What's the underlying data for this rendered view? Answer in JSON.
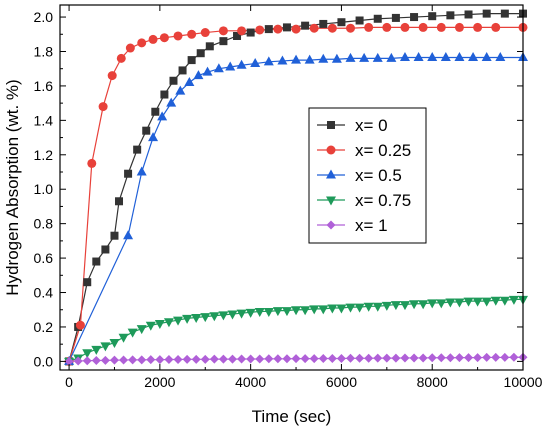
{
  "chart_data": {
    "type": "scatter",
    "xlabel": "Time (sec)",
    "ylabel": "Hydrogen Absorption (wt. %)",
    "xlim": [
      -200,
      10000
    ],
    "ylim": [
      -0.05,
      2.07
    ],
    "x_ticks": [
      0,
      2000,
      4000,
      6000,
      8000,
      10000
    ],
    "y_ticks": [
      0.0,
      0.2,
      0.4,
      0.6,
      0.8,
      1.0,
      1.2,
      1.4,
      1.6,
      1.8,
      2.0
    ],
    "y_tick_labels": [
      "0.0",
      "0.2",
      "0.4",
      "0.6",
      "0.8",
      "1.0",
      "1.2",
      "1.4",
      "1.6",
      "1.8",
      "2.0"
    ],
    "x_tick_labels": [
      "0",
      "2000",
      "4000",
      "6000",
      "8000",
      "10000"
    ],
    "grid": false,
    "legend_position": "center-right",
    "series": [
      {
        "name": "x= 0",
        "color": "#333333",
        "marker": "square",
        "points": [
          [
            0,
            0.0
          ],
          [
            200,
            0.2
          ],
          [
            400,
            0.46
          ],
          [
            600,
            0.58
          ],
          [
            800,
            0.65
          ],
          [
            1000,
            0.73
          ],
          [
            1100,
            0.93
          ],
          [
            1300,
            1.09
          ],
          [
            1500,
            1.23
          ],
          [
            1700,
            1.34
          ],
          [
            1900,
            1.45
          ],
          [
            2100,
            1.55
          ],
          [
            2300,
            1.63
          ],
          [
            2500,
            1.69
          ],
          [
            2700,
            1.75
          ],
          [
            2900,
            1.79
          ],
          [
            3100,
            1.83
          ],
          [
            3400,
            1.86
          ],
          [
            3700,
            1.89
          ],
          [
            4000,
            1.91
          ],
          [
            4400,
            1.93
          ],
          [
            4800,
            1.94
          ],
          [
            5200,
            1.95
          ],
          [
            5600,
            1.96
          ],
          [
            6000,
            1.97
          ],
          [
            6400,
            1.98
          ],
          [
            6800,
            1.99
          ],
          [
            7200,
            1.995
          ],
          [
            7600,
            2.0
          ],
          [
            8000,
            2.005
          ],
          [
            8400,
            2.01
          ],
          [
            8800,
            2.015
          ],
          [
            9200,
            2.02
          ],
          [
            9600,
            2.02
          ],
          [
            10000,
            2.02
          ]
        ]
      },
      {
        "name": "x= 0.25",
        "color": "#e8413a",
        "marker": "circle",
        "points": [
          [
            0,
            0.0
          ],
          [
            250,
            0.21
          ],
          [
            500,
            1.15
          ],
          [
            750,
            1.48
          ],
          [
            950,
            1.66
          ],
          [
            1150,
            1.76
          ],
          [
            1350,
            1.82
          ],
          [
            1600,
            1.85
          ],
          [
            1850,
            1.87
          ],
          [
            2100,
            1.88
          ],
          [
            2400,
            1.89
          ],
          [
            2700,
            1.9
          ],
          [
            3000,
            1.91
          ],
          [
            3400,
            1.92
          ],
          [
            3800,
            1.92
          ],
          [
            4200,
            1.925
          ],
          [
            4600,
            1.93
          ],
          [
            5000,
            1.93
          ],
          [
            5400,
            1.935
          ],
          [
            5800,
            1.935
          ],
          [
            6200,
            1.935
          ],
          [
            6600,
            1.94
          ],
          [
            7000,
            1.94
          ],
          [
            7400,
            1.94
          ],
          [
            7800,
            1.94
          ],
          [
            8200,
            1.94
          ],
          [
            8600,
            1.94
          ],
          [
            9000,
            1.94
          ],
          [
            9400,
            1.94
          ],
          [
            10000,
            1.94
          ]
        ]
      },
      {
        "name": "x= 0.5",
        "color": "#2060d8",
        "marker": "triangle-up",
        "points": [
          [
            0,
            0.0
          ],
          [
            1300,
            0.73
          ],
          [
            1600,
            1.1
          ],
          [
            1850,
            1.3
          ],
          [
            2050,
            1.42
          ],
          [
            2250,
            1.5
          ],
          [
            2450,
            1.57
          ],
          [
            2650,
            1.62
          ],
          [
            2850,
            1.66
          ],
          [
            3050,
            1.68
          ],
          [
            3300,
            1.7
          ],
          [
            3550,
            1.71
          ],
          [
            3800,
            1.72
          ],
          [
            4100,
            1.73
          ],
          [
            4400,
            1.74
          ],
          [
            4700,
            1.745
          ],
          [
            5000,
            1.75
          ],
          [
            5300,
            1.75
          ],
          [
            5600,
            1.755
          ],
          [
            5900,
            1.755
          ],
          [
            6200,
            1.76
          ],
          [
            6500,
            1.76
          ],
          [
            6800,
            1.76
          ],
          [
            7100,
            1.76
          ],
          [
            7400,
            1.765
          ],
          [
            7700,
            1.765
          ],
          [
            8000,
            1.765
          ],
          [
            8300,
            1.765
          ],
          [
            8600,
            1.765
          ],
          [
            8900,
            1.765
          ],
          [
            9200,
            1.765
          ],
          [
            9500,
            1.765
          ],
          [
            10000,
            1.765
          ]
        ]
      },
      {
        "name": "x= 0.75",
        "color": "#1e9a5a",
        "marker": "triangle-down",
        "points": [
          [
            0,
            0.0
          ],
          [
            200,
            0.02
          ],
          [
            400,
            0.05
          ],
          [
            600,
            0.07
          ],
          [
            800,
            0.09
          ],
          [
            1000,
            0.11
          ],
          [
            1200,
            0.14
          ],
          [
            1400,
            0.17
          ],
          [
            1600,
            0.19
          ],
          [
            1800,
            0.21
          ],
          [
            2000,
            0.22
          ],
          [
            2200,
            0.23
          ],
          [
            2400,
            0.24
          ],
          [
            2600,
            0.25
          ],
          [
            2800,
            0.255
          ],
          [
            3000,
            0.26
          ],
          [
            3200,
            0.265
          ],
          [
            3400,
            0.27
          ],
          [
            3600,
            0.275
          ],
          [
            3800,
            0.28
          ],
          [
            4000,
            0.285
          ],
          [
            4200,
            0.29
          ],
          [
            4400,
            0.29
          ],
          [
            4600,
            0.295
          ],
          [
            4800,
            0.295
          ],
          [
            5000,
            0.3
          ],
          [
            5200,
            0.3
          ],
          [
            5400,
            0.305
          ],
          [
            5600,
            0.305
          ],
          [
            5800,
            0.31
          ],
          [
            6000,
            0.31
          ],
          [
            6200,
            0.315
          ],
          [
            6400,
            0.315
          ],
          [
            6600,
            0.32
          ],
          [
            6800,
            0.32
          ],
          [
            7000,
            0.325
          ],
          [
            7200,
            0.33
          ],
          [
            7400,
            0.33
          ],
          [
            7600,
            0.335
          ],
          [
            7800,
            0.335
          ],
          [
            8000,
            0.34
          ],
          [
            8200,
            0.34
          ],
          [
            8400,
            0.345
          ],
          [
            8600,
            0.345
          ],
          [
            8800,
            0.35
          ],
          [
            9000,
            0.35
          ],
          [
            9200,
            0.35
          ],
          [
            9400,
            0.355
          ],
          [
            9600,
            0.355
          ],
          [
            9800,
            0.36
          ],
          [
            10000,
            0.36
          ]
        ]
      },
      {
        "name": "x= 1",
        "color": "#b060d8",
        "marker": "diamond",
        "points": [
          [
            0,
            0.0
          ],
          [
            200,
            0.002
          ],
          [
            400,
            0.004
          ],
          [
            600,
            0.005
          ],
          [
            800,
            0.006
          ],
          [
            1000,
            0.007
          ],
          [
            1200,
            0.008
          ],
          [
            1400,
            0.009
          ],
          [
            1600,
            0.009
          ],
          [
            1800,
            0.01
          ],
          [
            2000,
            0.01
          ],
          [
            2200,
            0.011
          ],
          [
            2400,
            0.011
          ],
          [
            2600,
            0.012
          ],
          [
            2800,
            0.012
          ],
          [
            3000,
            0.012
          ],
          [
            3200,
            0.013
          ],
          [
            3400,
            0.013
          ],
          [
            3600,
            0.013
          ],
          [
            3800,
            0.014
          ],
          [
            4000,
            0.014
          ],
          [
            4200,
            0.014
          ],
          [
            4400,
            0.015
          ],
          [
            4600,
            0.015
          ],
          [
            4800,
            0.015
          ],
          [
            5000,
            0.016
          ],
          [
            5200,
            0.016
          ],
          [
            5400,
            0.016
          ],
          [
            5600,
            0.017
          ],
          [
            5800,
            0.017
          ],
          [
            6000,
            0.017
          ],
          [
            6200,
            0.018
          ],
          [
            6400,
            0.018
          ],
          [
            6600,
            0.018
          ],
          [
            6800,
            0.019
          ],
          [
            7000,
            0.019
          ],
          [
            7200,
            0.019
          ],
          [
            7400,
            0.02
          ],
          [
            7600,
            0.02
          ],
          [
            7800,
            0.02
          ],
          [
            8000,
            0.021
          ],
          [
            8200,
            0.021
          ],
          [
            8400,
            0.021
          ],
          [
            8600,
            0.022
          ],
          [
            8800,
            0.022
          ],
          [
            9000,
            0.022
          ],
          [
            9200,
            0.023
          ],
          [
            9400,
            0.023
          ],
          [
            9600,
            0.023
          ],
          [
            9800,
            0.024
          ],
          [
            10000,
            0.024
          ]
        ]
      }
    ]
  }
}
